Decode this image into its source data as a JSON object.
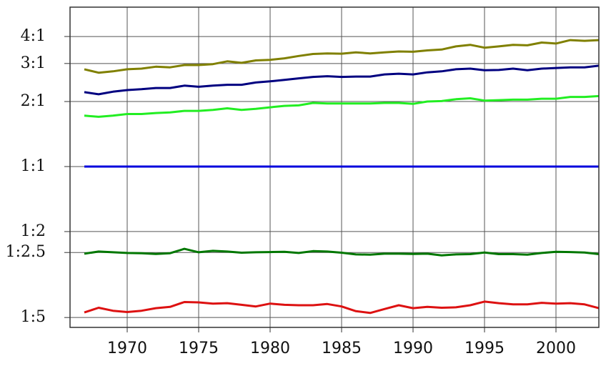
{
  "chart_data": {
    "type": "line",
    "log_y": true,
    "grid": true,
    "x": [
      1967,
      1968,
      1969,
      1970,
      1971,
      1972,
      1973,
      1974,
      1975,
      1976,
      1977,
      1978,
      1979,
      1980,
      1981,
      1982,
      1983,
      1984,
      1985,
      1986,
      1987,
      1988,
      1989,
      1990,
      1991,
      1992,
      1993,
      1994,
      1995,
      1996,
      1997,
      1998,
      1999,
      2000,
      2001,
      2002,
      2003
    ],
    "xlim": [
      1966,
      2003
    ],
    "xticks": [
      1970,
      1975,
      1980,
      1985,
      1990,
      1995,
      2000
    ],
    "ylim": [
      0.18,
      5.47
    ],
    "yticks": [
      {
        "value": 0.2,
        "label": "1:5"
      },
      {
        "value": 0.4,
        "label": "1:2.5"
      },
      {
        "value": 0.5,
        "label": "1:2"
      },
      {
        "value": 1,
        "label": "1:1"
      },
      {
        "value": 2,
        "label": "2:1"
      },
      {
        "value": 3,
        "label": "3:1"
      },
      {
        "value": 4,
        "label": "4:1"
      }
    ],
    "series": [
      {
        "color": "#808000",
        "values": [
          2.82,
          2.72,
          2.76,
          2.82,
          2.84,
          2.9,
          2.88,
          2.95,
          2.95,
          2.98,
          3.07,
          3.02,
          3.1,
          3.12,
          3.17,
          3.25,
          3.32,
          3.34,
          3.33,
          3.38,
          3.34,
          3.38,
          3.41,
          3.4,
          3.45,
          3.48,
          3.6,
          3.66,
          3.55,
          3.6,
          3.66,
          3.64,
          3.75,
          3.71,
          3.85,
          3.82,
          3.85
        ]
      },
      {
        "color": "#000080",
        "values": [
          2.21,
          2.16,
          2.22,
          2.26,
          2.28,
          2.31,
          2.31,
          2.37,
          2.34,
          2.37,
          2.39,
          2.39,
          2.45,
          2.48,
          2.52,
          2.56,
          2.6,
          2.62,
          2.6,
          2.61,
          2.61,
          2.67,
          2.69,
          2.67,
          2.73,
          2.76,
          2.82,
          2.84,
          2.79,
          2.8,
          2.84,
          2.79,
          2.84,
          2.86,
          2.88,
          2.88,
          2.93
        ]
      },
      {
        "color": "#22ee22",
        "values": [
          1.72,
          1.7,
          1.72,
          1.75,
          1.75,
          1.77,
          1.78,
          1.81,
          1.81,
          1.83,
          1.86,
          1.83,
          1.85,
          1.88,
          1.91,
          1.92,
          1.97,
          1.96,
          1.96,
          1.96,
          1.96,
          1.97,
          1.97,
          1.95,
          2.0,
          2.01,
          2.05,
          2.07,
          2.02,
          2.03,
          2.04,
          2.04,
          2.06,
          2.06,
          2.1,
          2.1,
          2.12
        ]
      },
      {
        "color": "#0000dd",
        "values": [
          1,
          1,
          1,
          1,
          1,
          1,
          1,
          1,
          1,
          1,
          1,
          1,
          1,
          1,
          1,
          1,
          1,
          1,
          1,
          1,
          1,
          1,
          1,
          1,
          1,
          1,
          1,
          1,
          1,
          1,
          1,
          1,
          1,
          1,
          1,
          1,
          1
        ]
      },
      {
        "color": "#007700",
        "values": [
          0.395,
          0.404,
          0.401,
          0.398,
          0.397,
          0.394,
          0.397,
          0.416,
          0.401,
          0.407,
          0.404,
          0.399,
          0.401,
          0.402,
          0.403,
          0.398,
          0.406,
          0.404,
          0.399,
          0.392,
          0.391,
          0.395,
          0.395,
          0.394,
          0.395,
          0.388,
          0.392,
          0.393,
          0.4,
          0.393,
          0.393,
          0.391,
          0.398,
          0.403,
          0.402,
          0.4,
          0.393
        ]
      },
      {
        "color": "#dd1111",
        "values": [
          0.211,
          0.222,
          0.215,
          0.212,
          0.215,
          0.221,
          0.224,
          0.236,
          0.235,
          0.232,
          0.233,
          0.229,
          0.225,
          0.232,
          0.229,
          0.228,
          0.228,
          0.231,
          0.225,
          0.214,
          0.21,
          0.219,
          0.228,
          0.221,
          0.224,
          0.222,
          0.223,
          0.228,
          0.237,
          0.233,
          0.23,
          0.23,
          0.234,
          0.232,
          0.233,
          0.23,
          0.221
        ]
      }
    ]
  }
}
